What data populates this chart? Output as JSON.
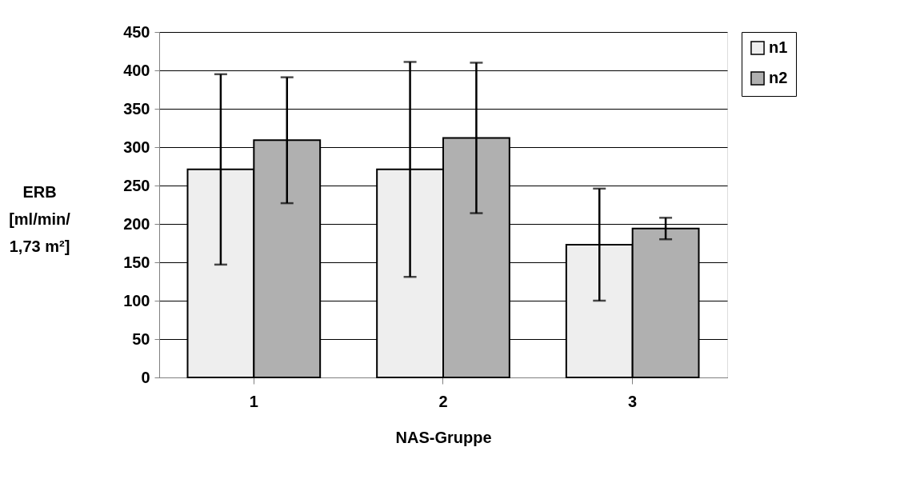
{
  "chart_data": {
    "type": "bar",
    "categories": [
      "1",
      "2",
      "3"
    ],
    "xlabel": "NAS-Gruppe",
    "ylabel": "ERB\n[ml/min/\n1,73 m²]",
    "series": [
      {
        "name": "n1",
        "color": "#eeeeee",
        "values": [
          271,
          271,
          173
        ],
        "errors": [
          [
            147,
            395
          ],
          [
            131,
            411
          ],
          [
            100,
            246
          ]
        ]
      },
      {
        "name": "n2",
        "color": "#b0b0b0",
        "values": [
          309,
          312,
          194
        ],
        "errors": [
          [
            227,
            391
          ],
          [
            214,
            410
          ],
          [
            180,
            208
          ]
        ]
      }
    ],
    "ylim": [
      0,
      450
    ],
    "yticks": [
      0,
      50,
      100,
      150,
      200,
      250,
      300,
      350,
      400,
      450
    ],
    "grid": "y",
    "legend": "right"
  }
}
